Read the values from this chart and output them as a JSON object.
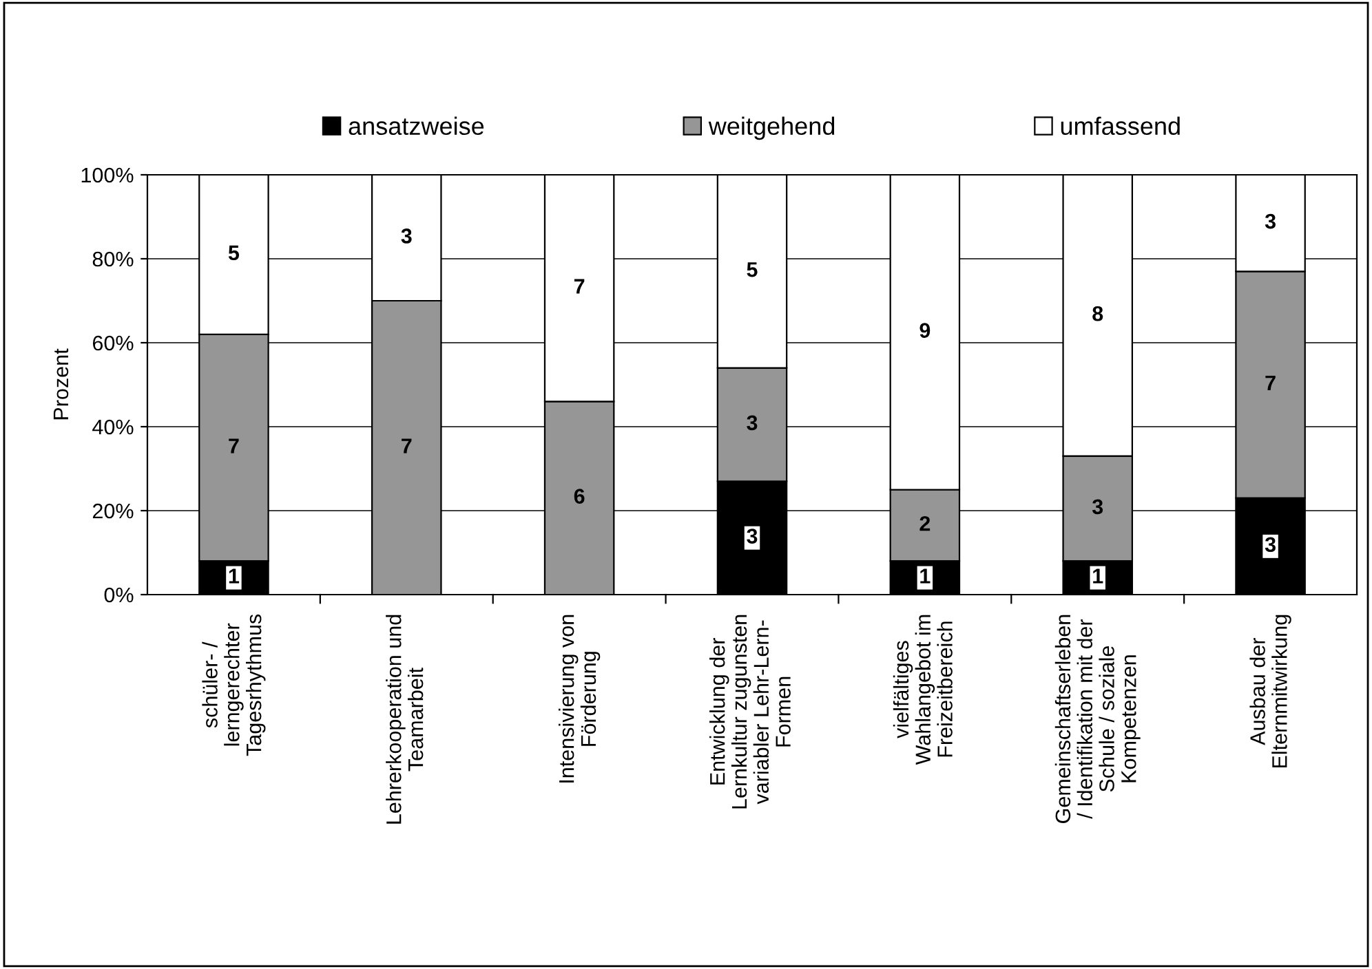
{
  "chart_data": {
    "type": "bar",
    "stacked": true,
    "ylabel": "Prozent",
    "categories": [
      "schüler- /\nlerngerechter\nTagesrhythmus",
      "Lehrerkooperation und\nTeamarbeit",
      "Intensivierung von\nFörderung",
      "Entwicklung der\nLernkultur zugunsten\nvariabler Lehr-Lern-\nFormen",
      "vielfältiges\nWahlangebot im\nFreizeitbereich",
      "Gemeinschaftserleben\n/ Identifikation mit der\nSchule / soziale\nKompetenzen",
      "Ausbau der\nElternmitwirkung"
    ],
    "series": [
      {
        "name": "ansatzweise",
        "color": "#000000",
        "values": [
          8,
          0,
          0,
          27,
          8,
          8,
          23
        ]
      },
      {
        "name": "weitgehend",
        "color": "#969696",
        "values": [
          54,
          70,
          46,
          27,
          17,
          25,
          54
        ]
      },
      {
        "name": "umfassend",
        "color": "#ffffff",
        "values": [
          38,
          30,
          54,
          46,
          75,
          67,
          23
        ]
      }
    ],
    "annotations": [
      "1",
      "7",
      "5",
      "7",
      "3",
      "6",
      "7",
      "3",
      "3",
      "5",
      "1",
      "2",
      "9",
      "1",
      "3",
      "8",
      "3",
      "7",
      "3"
    ],
    "ylim": [
      0,
      100
    ],
    "yticks": [
      {
        "value": 0,
        "label": "0%"
      },
      {
        "value": 20,
        "label": "20%"
      },
      {
        "value": 40,
        "label": "40%"
      },
      {
        "value": 60,
        "label": "60%"
      },
      {
        "value": 80,
        "label": "80%"
      },
      {
        "value": 100,
        "label": "100%"
      }
    ],
    "grid": "y",
    "legend": "top"
  }
}
